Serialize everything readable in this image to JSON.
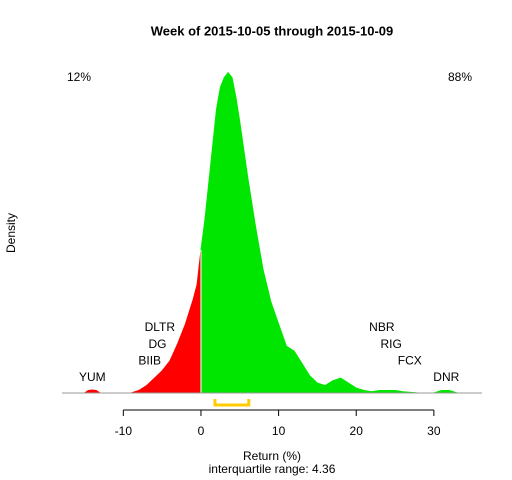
{
  "chart_data": {
    "type": "density",
    "title": "Week of 2015-10-05 through 2015-10-09",
    "x_label": "Return (%)",
    "subtitle": "interquartile range: 4.36",
    "y_label": "Density",
    "xlim": [
      -17.9,
      36.2
    ],
    "ylim": [
      0,
      0.14
    ],
    "xticks": [
      -10,
      0,
      10,
      20,
      30
    ],
    "series": [
      {
        "color": "#ff0000",
        "x": [
          -15,
          -14.5,
          -14,
          -13.5,
          -13,
          -9,
          -8,
          -7,
          -6,
          -5,
          -4,
          -3,
          -2,
          -1,
          -0.5,
          0
        ],
        "values": [
          0,
          0.001,
          0.0012,
          0.001,
          0,
          0,
          0.001,
          0.003,
          0.006,
          0.009,
          0.013,
          0.02,
          0.028,
          0.038,
          0.044,
          0.058
        ]
      },
      {
        "color": "#00e600",
        "x": [
          0,
          0.5,
          1,
          1.5,
          2,
          2.5,
          3,
          3.5,
          4,
          4.5,
          5,
          6,
          7,
          8,
          9,
          10,
          11,
          12,
          13,
          14,
          15,
          16,
          17,
          18,
          19,
          20,
          21,
          22,
          23,
          25,
          26,
          28,
          30,
          31,
          32,
          33
        ],
        "values": [
          0.058,
          0.07,
          0.085,
          0.1,
          0.115,
          0.124,
          0.128,
          0.13,
          0.128,
          0.12,
          0.11,
          0.088,
          0.068,
          0.05,
          0.037,
          0.028,
          0.019,
          0.017,
          0.012,
          0.007,
          0.004,
          0.003,
          0.005,
          0.006,
          0.004,
          0.002,
          0.001,
          0.0005,
          0.001,
          0.001,
          0.0005,
          0,
          0,
          0.001,
          0.001,
          0
        ]
      }
    ],
    "stock_labels": [
      {
        "text": "YUM",
        "x": -14
      },
      {
        "text": "BIIB",
        "x": -6.6
      },
      {
        "text": "DG",
        "x": -5.6
      },
      {
        "text": "DLTR",
        "x": -5.3
      },
      {
        "text": "NBR",
        "x": 23.3
      },
      {
        "text": "RIG",
        "x": 24.5
      },
      {
        "text": "FCX",
        "x": 26.9
      },
      {
        "text": "DNR",
        "x": 31.6
      }
    ],
    "iqr": [
      1.8,
      6.16
    ],
    "iqr_color": "#ffcc00",
    "share_left": {
      "text": "12%",
      "color": "#ff0000"
    },
    "share_right": {
      "text": "88%",
      "color": "#009900"
    }
  }
}
